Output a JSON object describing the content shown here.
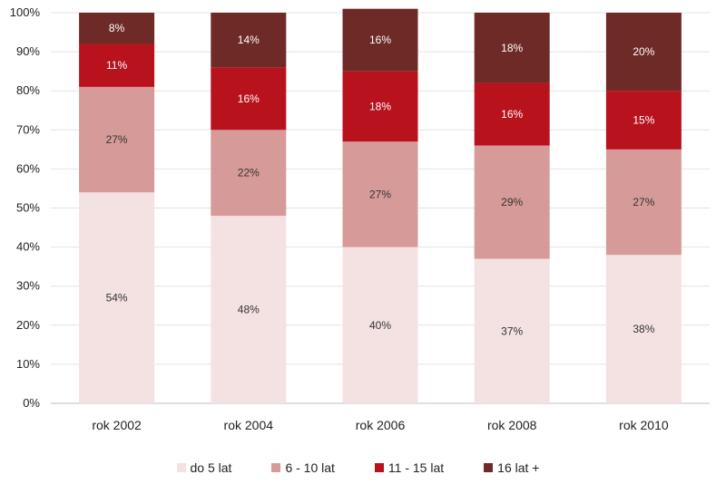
{
  "chart_data": {
    "type": "bar",
    "stacked": true,
    "percent": true,
    "categories": [
      "rok 2002",
      "rok 2004",
      "rok 2006",
      "rok 2008",
      "rok 2010"
    ],
    "series": [
      {
        "name": "do 5 lat",
        "color": "#f4e2e2",
        "label_color": "#333333",
        "values": [
          54,
          48,
          40,
          37,
          38
        ]
      },
      {
        "name": "6 - 10 lat",
        "color": "#d69b98",
        "label_color": "#333333",
        "values": [
          27,
          22,
          27,
          29,
          27
        ]
      },
      {
        "name": "11 - 15 lat",
        "color": "#b8121d",
        "label_color": "#ffffff",
        "values": [
          11,
          16,
          18,
          16,
          15
        ]
      },
      {
        "name": "16 lat +",
        "color": "#6e2a26",
        "label_color": "#ffffff",
        "values": [
          8,
          14,
          16,
          18,
          20
        ]
      }
    ],
    "labels": [
      [
        "54%",
        "48%",
        "40%",
        "37%",
        "38%"
      ],
      [
        "27%",
        "22%",
        "27%",
        "29%",
        "27%"
      ],
      [
        "11%",
        "16%",
        "18%",
        "16%",
        "15%"
      ],
      [
        "8%",
        "14%",
        "16%",
        "18%",
        "20%"
      ]
    ],
    "y_ticks": [
      "0%",
      "10%",
      "20%",
      "30%",
      "40%",
      "50%",
      "60%",
      "70%",
      "80%",
      "90%",
      "100%"
    ],
    "ylim": [
      0,
      100
    ],
    "grid": true,
    "legend_position": "bottom"
  }
}
